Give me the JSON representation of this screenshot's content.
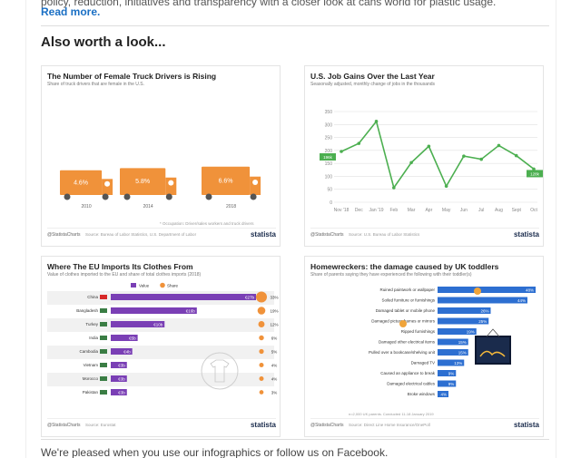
{
  "intro": {
    "text": "policy, reduction, initiatives and transparency with a closer look at cans world for plastic usage.",
    "read_more": "Read more."
  },
  "section_title": "Also worth a look...",
  "cards": [
    {
      "title": "The Number of Female Truck Drivers is Rising",
      "subtitle": "Share of truck drivers that are female in the U.S.",
      "note": "* Occupation: Driver/sales workers and truck drivers",
      "source": "Source: Bureau of Labor Statistics, U.S. Department of Labor",
      "cc": "@StatistaCharts",
      "brand": "statista",
      "chart_data": {
        "type": "bar",
        "categories": [
          "2010",
          "2014",
          "2018"
        ],
        "values": [
          4.6,
          5.8,
          6.6
        ],
        "labels": [
          "4.6%",
          "5.8%",
          "6.6%"
        ]
      }
    },
    {
      "title": "U.S. Job Gains Over the Last Year",
      "subtitle": "Seasonally adjusted, monthly change of jobs in the thousands",
      "source": "Source: U.S. Bureau of Labor Statistics",
      "cc": "@StatistaCharts",
      "brand": "statista",
      "start_label": "196k",
      "end_label": "128k",
      "chart_data": {
        "type": "line",
        "categories": [
          "Nov '18",
          "Dec",
          "Jan '19",
          "Feb",
          "Mar",
          "Apr",
          "May",
          "Jun",
          "Jul",
          "Aug",
          "Sept",
          "Oct"
        ],
        "values": [
          196,
          227,
          312,
          56,
          153,
          216,
          62,
          178,
          166,
          219,
          180,
          128
        ],
        "ylim": [
          0,
          350
        ],
        "yticks": [
          0,
          50,
          100,
          150,
          200,
          250,
          300,
          350
        ]
      }
    },
    {
      "title": "Where The EU Imports Its Clothes From",
      "subtitle": "Value of clothes imported to the EU and share of total clothes imports (2018)",
      "legend_value": "Value",
      "legend_share": "Share",
      "source": "Source: Eurostat",
      "cc": "@StatistaCharts",
      "brand": "statista",
      "chart_data": {
        "type": "bar",
        "categories": [
          "China",
          "Bangladesh",
          "Turkey",
          "India",
          "Cambodia",
          "Vietnam",
          "Morocco",
          "Pakistan"
        ],
        "values": [
          27,
          16,
          10,
          5,
          4,
          3,
          3,
          3
        ],
        "value_labels": [
          "€27b",
          "€16b",
          "€10b",
          "€5b",
          "€4b",
          "€3b",
          "€3b",
          "€3b"
        ],
        "share": [
          33,
          19,
          12,
          6,
          5,
          4,
          4,
          3
        ],
        "share_labels": [
          "33%",
          "19%",
          "12%",
          "6%",
          "5%",
          "4%",
          "4%",
          "3%"
        ]
      }
    },
    {
      "title": "Homewreckers: the damage caused by UK toddlers",
      "subtitle": "Share of parents saying they have experienced the following with their toddler(s)",
      "note": "n=2,000 UK parents. Conducted 11-18 January 2019",
      "source": "Source: Direct Line Home Insurance/OnePoll",
      "cc": "@StatistaCharts",
      "brand": "statista",
      "chart_data": {
        "type": "bar",
        "categories": [
          "Ruined paintwork or wallpaper",
          "Soiled furniture or furnishings",
          "Damaged tablet or mobile phone",
          "Damaged picture frames or mirrors",
          "Ripped furnishings",
          "Damaged other electrical items",
          "Pulled over a bookcase/shelving unit",
          "Damaged TV",
          "Caused an appliance to break",
          "Damaged electrical cables",
          "Broke windows"
        ],
        "values": [
          48,
          44,
          26,
          25,
          19,
          15,
          15,
          13,
          9,
          9,
          4
        ],
        "labels": [
          "48%",
          "44%",
          "26%",
          "25%",
          "19%",
          "15%",
          "15%",
          "13%",
          "9%",
          "9%",
          "4%"
        ]
      }
    }
  ],
  "bottom_text": "We're pleased when you use our infographics or follow us on Facebook.",
  "colors": {
    "orange": "#f0923a",
    "green": "#4caf50",
    "purple": "#7a3fb5",
    "blue": "#2d6fd1",
    "navy": "#1a2b4c"
  }
}
